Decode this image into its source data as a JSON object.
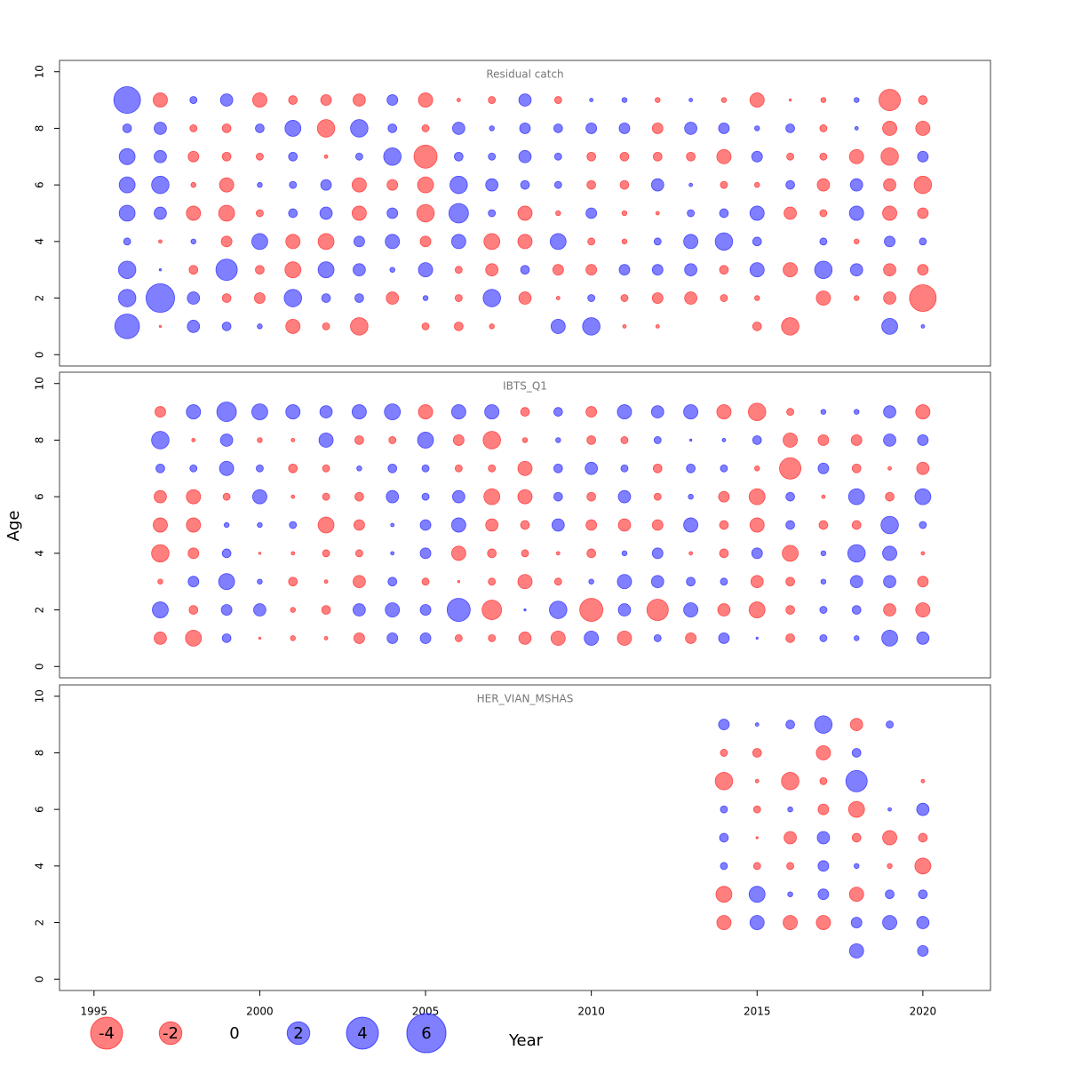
{
  "chart_data": {
    "type": "bubble",
    "x_label": "Year",
    "y_label": "Age",
    "xlim": [
      1993.96,
      2022.04
    ],
    "xticks": [
      1995,
      2000,
      2005,
      2010,
      2015,
      2020
    ],
    "ylim": [
      -0.4,
      10.4
    ],
    "yticks": [
      0,
      2,
      4,
      6,
      8,
      10
    ],
    "colors": {
      "negative": "#ff0000",
      "positive": "#0000ff"
    },
    "legend": [
      -4,
      -2,
      0,
      2,
      4,
      6
    ],
    "panels": [
      {
        "title": "Residual catch",
        "y": [
          1,
          2,
          3,
          4,
          5,
          6,
          7,
          8,
          9
        ],
        "x": [
          1996,
          1997,
          1998,
          1999,
          2000,
          2001,
          2002,
          2003,
          2004,
          2005,
          2006,
          2007,
          2008,
          2009,
          2010,
          2011,
          2012,
          2013,
          2014,
          2015,
          2016,
          2017,
          2018,
          2019,
          2020
        ],
        "values": [
          [
            2.4,
            1.2,
            1.2,
            0.2,
            1.0,
            1.0,
            1.0,
            0.3,
            2.8
          ],
          [
            -0.02,
            3.2,
            0.02,
            -0.05,
            0.6,
            1.2,
            0.6,
            0.6,
            -0.8
          ],
          [
            0.6,
            0.6,
            -0.3,
            0.1,
            -0.8,
            -0.1,
            -0.45,
            -0.2,
            0.2
          ],
          [
            0.3,
            -0.3,
            1.8,
            -0.45,
            -1.0,
            -0.8,
            -0.3,
            -0.3,
            0.6
          ],
          [
            0.1,
            -0.45,
            -0.3,
            1.0,
            -0.2,
            0.1,
            -0.2,
            0.3,
            -0.8
          ],
          [
            -0.8,
            1.2,
            -1.0,
            -0.8,
            0.3,
            0.2,
            0.3,
            1.0,
            -0.3
          ],
          [
            -0.2,
            0.3,
            1.0,
            -1.0,
            0.6,
            0.45,
            -0.05,
            -1.2,
            -0.45
          ],
          [
            -1.2,
            0.3,
            0.6,
            0.45,
            -0.8,
            -0.8,
            0.2,
            1.2,
            -0.6
          ],
          [
            null,
            -0.6,
            0.1,
            0.8,
            0.45,
            -0.45,
            1.2,
            0.3,
            0.45
          ],
          [
            -0.2,
            0.1,
            0.8,
            -0.45,
            -1.2,
            -1.0,
            -2.1,
            -0.2,
            -0.8
          ],
          [
            -0.3,
            -0.2,
            -0.2,
            0.8,
            1.5,
            1.2,
            0.3,
            0.6,
            -0.05
          ],
          [
            -0.1,
            1.2,
            -0.6,
            -1.0,
            0.2,
            0.6,
            0.2,
            0.1,
            -0.2
          ],
          [
            null,
            -0.6,
            0.3,
            -0.8,
            -0.8,
            0.3,
            0.6,
            0.45,
            0.6
          ],
          [
            0.8,
            -0.05,
            -0.45,
            1.0,
            -0.1,
            0.2,
            0.2,
            0.3,
            -0.2
          ],
          [
            1.2,
            0.2,
            -0.45,
            -0.2,
            0.45,
            -0.3,
            -0.3,
            0.45,
            0.05
          ],
          [
            -0.05,
            -0.2,
            0.45,
            -0.1,
            -0.1,
            -0.3,
            -0.3,
            0.45,
            0.1
          ],
          [
            -0.05,
            -0.45,
            0.45,
            0.2,
            -0.05,
            0.6,
            -0.3,
            -0.45,
            -0.1
          ],
          [
            null,
            -0.6,
            0.6,
            0.8,
            0.2,
            0.05,
            -0.3,
            0.6,
            0.05
          ],
          [
            null,
            -0.2,
            -0.3,
            1.2,
            0.3,
            -0.2,
            -0.8,
            0.45,
            -0.1
          ],
          [
            -0.3,
            -0.1,
            0.8,
            0.3,
            0.8,
            -0.1,
            0.45,
            0.1,
            -0.8
          ],
          [
            -1.2,
            null,
            -0.8,
            null,
            -0.6,
            0.3,
            -0.2,
            0.3,
            -0.02
          ],
          [
            null,
            -0.8,
            1.2,
            0.2,
            -0.2,
            -0.6,
            -0.2,
            -0.2,
            -0.1
          ],
          [
            null,
            -0.1,
            0.6,
            -0.1,
            0.8,
            0.6,
            -0.8,
            0.05,
            0.1
          ],
          [
            1.0,
            -0.6,
            -0.6,
            0.45,
            -0.8,
            -0.6,
            -1.2,
            -0.8,
            -1.8
          ],
          [
            0.05,
            -2.8,
            -0.45,
            0.2,
            -0.45,
            -1.2,
            0.45,
            -0.8,
            -0.3
          ]
        ]
      },
      {
        "title": "IBTS_Q1",
        "y": [
          1,
          2,
          3,
          4,
          5,
          6,
          7,
          8,
          9
        ],
        "x": [
          1997,
          1998,
          1999,
          2000,
          2001,
          2002,
          2003,
          2004,
          2005,
          2006,
          2007,
          2008,
          2009,
          2010,
          2011,
          2012,
          2013,
          2014,
          2015,
          2016,
          2017,
          2018,
          2019,
          2020
        ],
        "values": [
          [
            -0.6,
            1.0,
            -0.1,
            -1.2,
            -0.8,
            -0.6,
            0.3,
            1.2,
            -0.45
          ],
          [
            -1.0,
            -0.3,
            0.45,
            -0.45,
            -0.8,
            -0.8,
            0.2,
            -0.05,
            0.8
          ],
          [
            0.3,
            0.45,
            1.0,
            0.3,
            0.1,
            -0.2,
            0.8,
            0.6,
            1.5
          ],
          [
            -0.02,
            0.6,
            0.1,
            -0.02,
            0.1,
            0.8,
            0.2,
            -0.1,
            1.0
          ],
          [
            -0.1,
            -0.1,
            -0.3,
            -0.05,
            0.2,
            -0.05,
            -0.3,
            -0.05,
            0.8
          ],
          [
            -0.05,
            -0.3,
            -0.05,
            -0.2,
            -1.0,
            -0.2,
            -0.2,
            0.8,
            0.6
          ],
          [
            -0.45,
            0.6,
            -0.6,
            -0.2,
            -0.45,
            -0.3,
            0.1,
            -0.3,
            0.8
          ],
          [
            0.45,
            0.8,
            0.3,
            0.05,
            0.05,
            0.6,
            0.3,
            -0.2,
            1.0
          ],
          [
            0.45,
            0.45,
            -0.2,
            0.45,
            0.45,
            0.2,
            0.2,
            1.0,
            -0.8
          ],
          [
            -0.2,
            2.1,
            -0.02,
            -0.8,
            0.8,
            0.6,
            -0.2,
            -0.45,
            0.8
          ],
          [
            -0.2,
            -1.5,
            -0.2,
            -0.3,
            -0.6,
            -1.0,
            -0.2,
            -1.2,
            0.8
          ],
          [
            -0.6,
            0.02,
            -0.8,
            -0.2,
            -0.3,
            -0.8,
            -0.8,
            -0.1,
            -0.3
          ],
          [
            -0.8,
            1.2,
            -0.2,
            -0.05,
            0.6,
            0.3,
            0.3,
            0.1,
            0.3
          ],
          [
            0.8,
            -2.1,
            0.1,
            -0.3,
            -0.45,
            -0.3,
            0.6,
            -0.3,
            -0.45
          ],
          [
            -0.8,
            0.6,
            0.8,
            0.1,
            -0.6,
            0.6,
            0.2,
            -0.2,
            0.8
          ],
          [
            0.2,
            -1.8,
            0.6,
            0.45,
            -0.45,
            -0.2,
            -0.3,
            0.2,
            0.6
          ],
          [
            -0.45,
            0.8,
            0.3,
            -0.05,
            0.8,
            0.1,
            0.3,
            0.02,
            0.8
          ],
          [
            0.45,
            -0.6,
            0.2,
            -0.3,
            -0.3,
            -0.45,
            0.2,
            0.05,
            -0.8
          ],
          [
            0.02,
            -1.0,
            -0.6,
            0.45,
            -0.8,
            -1.0,
            -0.1,
            0.3,
            -1.2
          ],
          [
            -0.3,
            -0.3,
            -0.3,
            -1.0,
            0.3,
            0.3,
            -1.8,
            -0.8,
            -0.2
          ],
          [
            0.2,
            0.2,
            0.1,
            0.1,
            -0.3,
            -0.05,
            0.45,
            -0.45,
            0.1
          ],
          [
            0.1,
            0.3,
            0.6,
            1.2,
            -0.3,
            1.0,
            -0.3,
            -0.45,
            0.1
          ],
          [
            1.0,
            -0.6,
            0.6,
            0.8,
            1.2,
            -0.3,
            -0.05,
            0.6,
            0.6
          ],
          [
            0.6,
            -0.8,
            -0.45,
            -0.05,
            0.2,
            1.0,
            -0.6,
            0.45,
            -0.8
          ]
        ]
      },
      {
        "title": "HER_VIAN_MSHAS",
        "y": [
          1,
          2,
          3,
          4,
          5,
          6,
          7,
          8,
          9
        ],
        "x": [
          2014,
          2015,
          2016,
          2017,
          2018,
          2019,
          2020
        ],
        "values": [
          [
            null,
            -0.8,
            -1.0,
            0.2,
            0.3,
            0.2,
            -1.2,
            -0.2,
            0.45
          ],
          [
            null,
            0.8,
            1.0,
            -0.2,
            -0.02,
            -0.2,
            -0.05,
            -0.3,
            0.05
          ],
          [
            null,
            -0.8,
            0.1,
            -0.2,
            -0.6,
            0.1,
            -1.2,
            null,
            0.3
          ],
          [
            null,
            -0.8,
            0.45,
            0.45,
            0.6,
            -0.45,
            -0.2,
            -0.8,
            1.2
          ],
          [
            0.8,
            0.45,
            -0.8,
            0.1,
            -0.3,
            -1.0,
            1.8,
            0.3,
            -0.6
          ],
          [
            null,
            0.8,
            0.3,
            -0.1,
            -0.8,
            0.05,
            null,
            null,
            0.2
          ],
          [
            0.45,
            0.6,
            0.3,
            -1.0,
            -0.3,
            0.6,
            -0.05,
            null,
            null
          ]
        ]
      }
    ]
  }
}
